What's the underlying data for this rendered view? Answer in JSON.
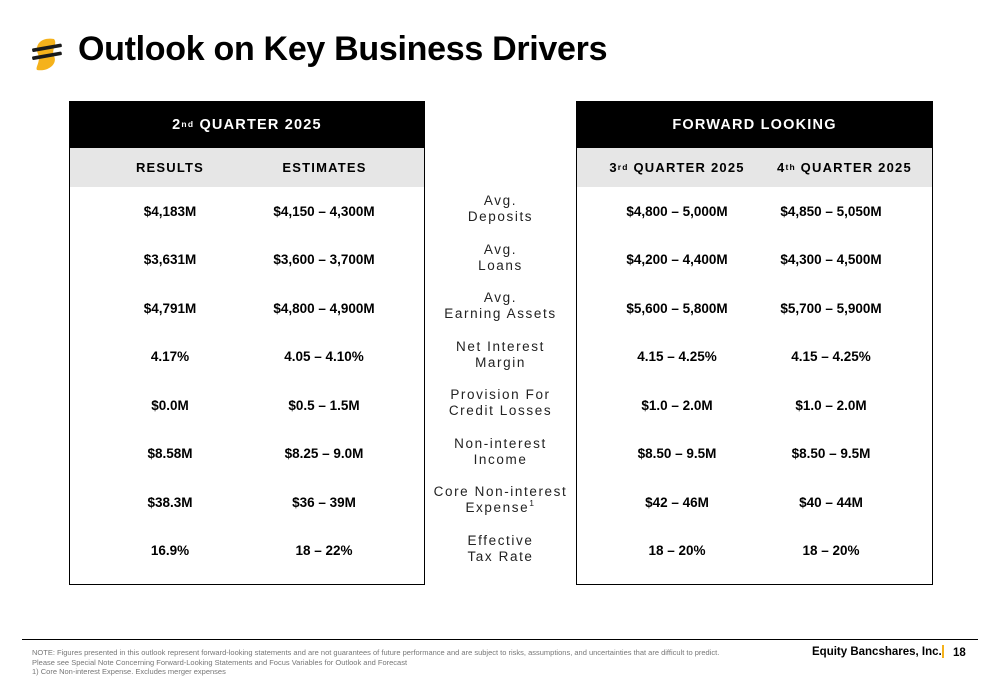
{
  "header": {
    "title": "Outlook on Key Business Drivers"
  },
  "colors": {
    "header_bg": "#000000",
    "subheader_bg": "#e6e6e6",
    "brand_gold": "#f5b21b",
    "brand_dark": "#1a1a1a"
  },
  "left_panel": {
    "heading_base": "2",
    "heading_sup": "nd",
    "heading_rest": " QUARTER 2025",
    "col_results": "RESULTS",
    "col_estimates": "ESTIMATES",
    "rows": [
      {
        "results": "$4,183M",
        "estimates": "$4,150 – 4,300M"
      },
      {
        "results": "$3,631M",
        "estimates": "$3,600 – 3,700M"
      },
      {
        "results": "$4,791M",
        "estimates": "$4,800 – 4,900M"
      },
      {
        "results": "4.17%",
        "estimates": "4.05 – 4.10%"
      },
      {
        "results": "$0.0M",
        "estimates": "$0.5 – 1.5M"
      },
      {
        "results": "$8.58M",
        "estimates": "$8.25 – 9.0M"
      },
      {
        "results": "$38.3M",
        "estimates": "$36 – 39M"
      },
      {
        "results": "16.9%",
        "estimates": "18 – 22%"
      }
    ]
  },
  "metrics": [
    {
      "line1": "Avg.",
      "line2": "Deposits"
    },
    {
      "line1": "Avg.",
      "line2": "Loans"
    },
    {
      "line1": "Avg.",
      "line2": "Earning Assets"
    },
    {
      "line1": "Net Interest",
      "line2": "Margin"
    },
    {
      "line1": "Provision For",
      "line2": "Credit Losses"
    },
    {
      "line1": "Non-interest",
      "line2": "Income"
    },
    {
      "line1": "Core Non-interest",
      "line2": "Expense",
      "line2_sup": "1"
    },
    {
      "line1": "Effective",
      "line2": "Tax Rate"
    }
  ],
  "right_panel": {
    "heading": "FORWARD LOOKING",
    "col_q3_base": "3",
    "col_q3_sup": "rd",
    "col_q3_rest": " QUARTER 2025",
    "col_q4_base": "4",
    "col_q4_sup": "th",
    "col_q4_rest": " QUARTER 2025",
    "rows": [
      {
        "q3": "$4,800 – 5,000M",
        "q4": "$4,850 – 5,050M"
      },
      {
        "q3": "$4,200 – 4,400M",
        "q4": "$4,300 – 4,500M"
      },
      {
        "q3": "$5,600 – 5,800M",
        "q4": "$5,700 – 5,900M"
      },
      {
        "q3": "4.15 – 4.25%",
        "q4": "4.15 – 4.25%"
      },
      {
        "q3": "$1.0 – 2.0M",
        "q4": "$1.0 – 2.0M"
      },
      {
        "q3": "$8.50 – 9.5M",
        "q4": "$8.50 – 9.5M"
      },
      {
        "q3": "$42 – 46M",
        "q4": "$40 – 44M"
      },
      {
        "q3": "18 – 20%",
        "q4": "18 – 20%"
      }
    ]
  },
  "footer": {
    "note_line1": "NOTE: Figures presented in this outlook represent forward-looking statements and are not guarantees of future performance and are subject to risks, assumptions, and uncertainties that are difficult to predict.",
    "note_line2": "Please see Special Note Concerning Forward-Looking Statements and Focus Variables for Outlook and Forecast",
    "note_line3": "1) Core Non-interest Expense. Excludes merger expenses",
    "company": "Equity Bancshares, Inc.",
    "page_number": "18"
  }
}
